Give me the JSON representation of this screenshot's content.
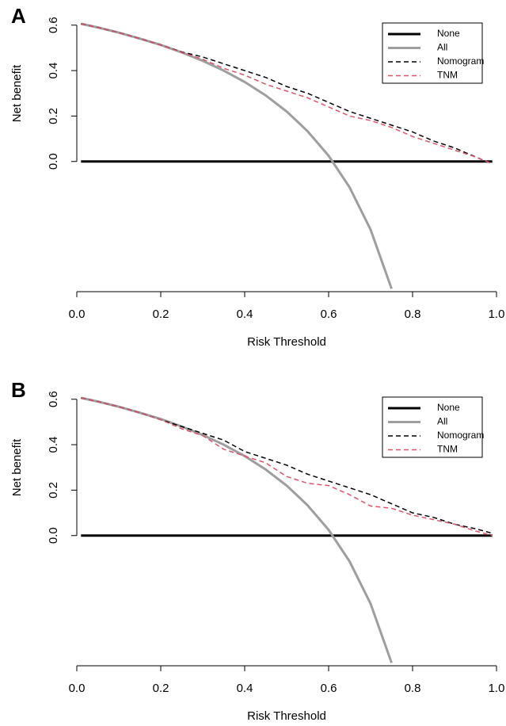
{
  "chart_data": [
    {
      "type": "line",
      "label": "A",
      "xlabel": "Risk Threshold",
      "ylabel": "Net benefit",
      "x": [
        0.01,
        0.05,
        0.1,
        0.15,
        0.2,
        0.25,
        0.3,
        0.35,
        0.4,
        0.45,
        0.5,
        0.55,
        0.6,
        0.65,
        0.7,
        0.75,
        0.8,
        0.85,
        0.9,
        0.95,
        0.99
      ],
      "xlim": [
        0,
        1
      ],
      "xticks": [
        {
          "value": 0,
          "label": "0.0"
        },
        0.2,
        0.4,
        0.6,
        0.8,
        {
          "value": 1,
          "label": "1.0"
        }
      ],
      "ylim": [
        -0.58,
        0.62
      ],
      "yticks": [
        {
          "value": 0,
          "label": "0.0"
        },
        0.2,
        0.4,
        0.6
      ],
      "legend": "top-right",
      "series": [
        {
          "name": "None",
          "color": "#000000",
          "dash": "solid",
          "width": 3,
          "values": [
            0,
            0,
            0,
            0,
            0,
            0,
            0,
            0,
            0,
            0,
            0,
            0,
            0,
            0,
            0,
            0,
            0,
            0,
            0,
            0,
            0
          ]
        },
        {
          "name": "All",
          "color": "#9e9e9e",
          "dash": "solid",
          "width": 3,
          "values": [
            0.606,
            0.59,
            0.567,
            0.541,
            0.513,
            0.48,
            0.443,
            0.4,
            0.35,
            0.291,
            0.22,
            0.133,
            0.025,
            -0.114,
            -0.3,
            -0.56,
            null,
            null,
            null,
            null,
            null
          ]
        },
        {
          "name": "Nomogram",
          "color": "#000000",
          "dash": "dashed",
          "width": 1.5,
          "values": [
            0.606,
            0.59,
            0.567,
            0.541,
            0.513,
            0.482,
            0.46,
            0.43,
            0.4,
            0.37,
            0.33,
            0.3,
            0.26,
            0.22,
            0.19,
            0.16,
            0.13,
            0.09,
            0.06,
            0.02,
            -0.01
          ]
        },
        {
          "name": "TNM",
          "color": "#df536b",
          "dash": "dashed",
          "width": 1.5,
          "values": [
            0.606,
            0.59,
            0.567,
            0.541,
            0.513,
            0.48,
            0.45,
            0.41,
            0.38,
            0.34,
            0.31,
            0.28,
            0.24,
            0.2,
            0.18,
            0.15,
            0.11,
            0.08,
            0.05,
            0.02,
            -0.01
          ]
        }
      ]
    },
    {
      "type": "line",
      "label": "B",
      "xlabel": "Risk Threshold",
      "ylabel": "Net benefit",
      "x": [
        0.01,
        0.05,
        0.1,
        0.15,
        0.2,
        0.25,
        0.3,
        0.35,
        0.4,
        0.45,
        0.5,
        0.55,
        0.6,
        0.65,
        0.7,
        0.75,
        0.8,
        0.85,
        0.9,
        0.95,
        0.99
      ],
      "xlim": [
        0,
        1
      ],
      "xticks": [
        {
          "value": 0,
          "label": "0.0"
        },
        0.2,
        0.4,
        0.6,
        0.8,
        {
          "value": 1,
          "label": "1.0"
        }
      ],
      "ylim": [
        -0.58,
        0.62
      ],
      "yticks": [
        {
          "value": 0,
          "label": "0.0"
        },
        0.2,
        0.4,
        0.6
      ],
      "legend": "top-right",
      "series": [
        {
          "name": "None",
          "color": "#000000",
          "dash": "solid",
          "width": 3,
          "values": [
            0,
            0,
            0,
            0,
            0,
            0,
            0,
            0,
            0,
            0,
            0,
            0,
            0,
            0,
            0,
            0,
            0,
            0,
            0,
            0,
            0
          ]
        },
        {
          "name": "All",
          "color": "#9e9e9e",
          "dash": "solid",
          "width": 3,
          "values": [
            0.606,
            0.59,
            0.567,
            0.541,
            0.513,
            0.48,
            0.443,
            0.4,
            0.35,
            0.291,
            0.22,
            0.133,
            0.025,
            -0.114,
            -0.3,
            -0.56,
            null,
            null,
            null,
            null,
            null
          ]
        },
        {
          "name": "Nomogram",
          "color": "#000000",
          "dash": "dashed",
          "width": 1.5,
          "values": [
            0.606,
            0.59,
            0.567,
            0.541,
            0.51,
            0.48,
            0.45,
            0.42,
            0.37,
            0.34,
            0.31,
            0.27,
            0.24,
            0.21,
            0.18,
            0.14,
            0.1,
            0.08,
            0.05,
            0.03,
            0.01
          ]
        },
        {
          "name": "TNM",
          "color": "#df536b",
          "dash": "dashed",
          "width": 1.5,
          "values": [
            0.606,
            0.59,
            0.567,
            0.541,
            0.51,
            0.47,
            0.44,
            0.38,
            0.35,
            0.32,
            0.26,
            0.23,
            0.22,
            0.18,
            0.13,
            0.12,
            0.09,
            0.07,
            0.05,
            0.02,
            0
          ]
        }
      ]
    }
  ]
}
